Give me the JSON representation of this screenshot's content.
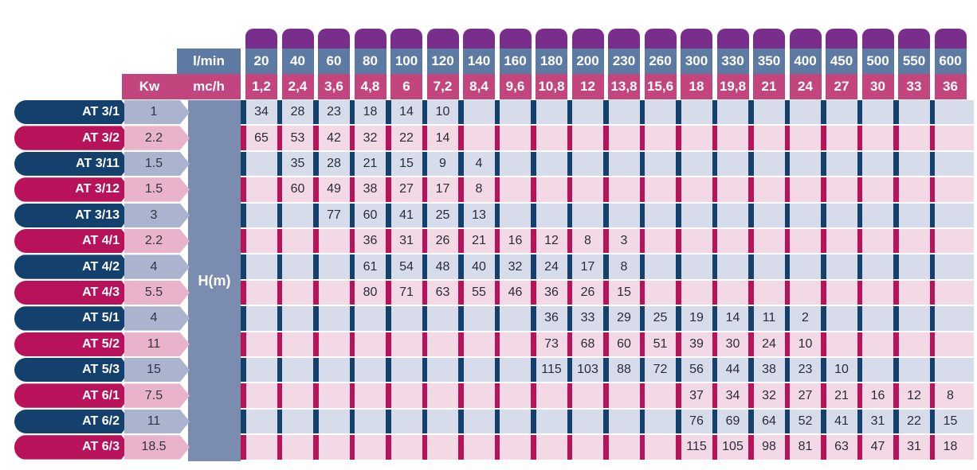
{
  "header": {
    "flow_unit_lpm": "l/min",
    "flow_unit_m3h": "mc/h",
    "power_label": "Kw",
    "head_label": "H(m)"
  },
  "colors": {
    "purple": "#7a2e8c",
    "header_blue": "#5d7aa3",
    "header_pink": "#c2457d",
    "dark_navy": "#14406e",
    "magenta": "#b8135a",
    "row_light_blue": "#d7dcea",
    "row_light_pink": "#f2d9e5",
    "hm_column": "#7a8db0",
    "kw_blue": "#aab4cf",
    "kw_pink": "#e9b4cb"
  },
  "chart_data": {
    "type": "table",
    "columns_lpm": [
      "20",
      "40",
      "60",
      "80",
      "100",
      "120",
      "140",
      "160",
      "180",
      "200",
      "230",
      "260",
      "300",
      "330",
      "350",
      "400",
      "450",
      "500",
      "550",
      "600"
    ],
    "columns_m3h": [
      "1,2",
      "2,4",
      "3,6",
      "4,8",
      "6",
      "7,2",
      "8,4",
      "9,6",
      "10,8",
      "12",
      "13,8",
      "15,6",
      "18",
      "19,8",
      "21",
      "24",
      "27",
      "30",
      "33",
      "36"
    ],
    "rows": [
      {
        "model": "AT 3/1",
        "kw": "1",
        "values": [
          "34",
          "28",
          "23",
          "18",
          "14",
          "10",
          "",
          "",
          "",
          "",
          "",
          "",
          "",
          "",
          "",
          "",
          "",
          "",
          "",
          ""
        ]
      },
      {
        "model": "AT 3/2",
        "kw": "2.2",
        "values": [
          "65",
          "53",
          "42",
          "32",
          "22",
          "14",
          "",
          "",
          "",
          "",
          "",
          "",
          "",
          "",
          "",
          "",
          "",
          "",
          "",
          ""
        ]
      },
      {
        "model": "AT 3/11",
        "kw": "1.5",
        "values": [
          "",
          "35",
          "28",
          "21",
          "15",
          "9",
          "4",
          "",
          "",
          "",
          "",
          "",
          "",
          "",
          "",
          "",
          "",
          "",
          "",
          ""
        ]
      },
      {
        "model": "AT 3/12",
        "kw": "1.5",
        "values": [
          "",
          "60",
          "49",
          "38",
          "27",
          "17",
          "8",
          "",
          "",
          "",
          "",
          "",
          "",
          "",
          "",
          "",
          "",
          "",
          "",
          ""
        ]
      },
      {
        "model": "AT 3/13",
        "kw": "3",
        "values": [
          "",
          "",
          "77",
          "60",
          "41",
          "25",
          "13",
          "",
          "",
          "",
          "",
          "",
          "",
          "",
          "",
          "",
          "",
          "",
          "",
          ""
        ]
      },
      {
        "model": "AT 4/1",
        "kw": "2.2",
        "values": [
          "",
          "",
          "",
          "36",
          "31",
          "26",
          "21",
          "16",
          "12",
          "8",
          "3",
          "",
          "",
          "",
          "",
          "",
          "",
          "",
          "",
          ""
        ]
      },
      {
        "model": "AT 4/2",
        "kw": "4",
        "values": [
          "",
          "",
          "",
          "61",
          "54",
          "48",
          "40",
          "32",
          "24",
          "17",
          "8",
          "",
          "",
          "",
          "",
          "",
          "",
          "",
          "",
          ""
        ]
      },
      {
        "model": "AT 4/3",
        "kw": "5.5",
        "values": [
          "",
          "",
          "",
          "80",
          "71",
          "63",
          "55",
          "46",
          "36",
          "26",
          "15",
          "",
          "",
          "",
          "",
          "",
          "",
          "",
          "",
          ""
        ]
      },
      {
        "model": "AT 5/1",
        "kw": "4",
        "values": [
          "",
          "",
          "",
          "",
          "",
          "",
          "",
          "",
          "36",
          "33",
          "29",
          "25",
          "19",
          "14",
          "11",
          "2",
          "",
          "",
          "",
          ""
        ]
      },
      {
        "model": "AT 5/2",
        "kw": "11",
        "values": [
          "",
          "",
          "",
          "",
          "",
          "",
          "",
          "",
          "73",
          "68",
          "60",
          "51",
          "39",
          "30",
          "24",
          "10",
          "",
          "",
          "",
          ""
        ]
      },
      {
        "model": "AT 5/3",
        "kw": "15",
        "values": [
          "",
          "",
          "",
          "",
          "",
          "",
          "",
          "",
          "115",
          "103",
          "88",
          "72",
          "56",
          "44",
          "38",
          "23",
          "10",
          "",
          "",
          ""
        ]
      },
      {
        "model": "AT 6/1",
        "kw": "7.5",
        "values": [
          "",
          "",
          "",
          "",
          "",
          "",
          "",
          "",
          "",
          "",
          "",
          "",
          "37",
          "34",
          "32",
          "27",
          "21",
          "16",
          "12",
          "8"
        ]
      },
      {
        "model": "AT 6/2",
        "kw": "11",
        "values": [
          "",
          "",
          "",
          "",
          "",
          "",
          "",
          "",
          "",
          "",
          "",
          "",
          "76",
          "69",
          "64",
          "52",
          "41",
          "31",
          "22",
          "15"
        ]
      },
      {
        "model": "AT 6/3",
        "kw": "18.5",
        "values": [
          "",
          "",
          "",
          "",
          "",
          "",
          "",
          "",
          "",
          "",
          "",
          "",
          "115",
          "105",
          "98",
          "81",
          "63",
          "47",
          "31",
          "18"
        ]
      }
    ]
  }
}
